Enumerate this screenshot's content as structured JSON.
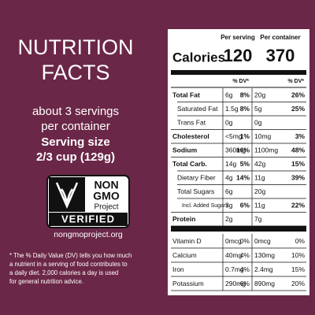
{
  "left": {
    "title_lines": [
      "NUTRITION",
      "FACTS"
    ],
    "servings_lines": [
      "about 3 servings",
      "per container"
    ],
    "serving_size_lines": [
      "Serving size",
      "2/3 cup (129g)"
    ],
    "badge": {
      "top": [
        "NON",
        "GMO"
      ],
      "project": "Project",
      "verified": "VERIFIED",
      "url": "nongmoproject.org"
    },
    "footnote_lines": [
      "* The % Daily Value (DV) tells you how much",
      "a nutrient in a serving of food contributes to",
      "a daily diet. 2,000 calories a day is used",
      "for general nutrition advice."
    ]
  },
  "panel": {
    "col_headers": [
      "Per serving",
      "Per container"
    ],
    "calories_label": "Calories",
    "calories": [
      "120",
      "370"
    ],
    "dv_headers": [
      "% DV*",
      "% DV*"
    ],
    "rows": [
      {
        "label": "Total Fat",
        "bold": true,
        "indent": 0,
        "serving": "6g",
        "serving_dv": "8%",
        "container": "20g",
        "container_dv": "26%"
      },
      {
        "label": "Saturated Fat",
        "bold": false,
        "indent": 1,
        "serving": "1.5g",
        "serving_dv": "8%",
        "container": "5g",
        "container_dv": "25%"
      },
      {
        "label": "Trans Fat",
        "bold": false,
        "indent": 1,
        "serving": "0g",
        "container": "0g"
      },
      {
        "label": "Cholesterol",
        "bold": true,
        "indent": 0,
        "serving": "<5mg",
        "serving_dv": "1%",
        "container": "10mg",
        "container_dv": "3%"
      },
      {
        "label": "Sodium",
        "bold": true,
        "indent": 0,
        "serving": "360mg",
        "serving_dv": "16%",
        "container": "1100mg",
        "container_dv": "48%"
      },
      {
        "label": "Total Carb.",
        "bold": true,
        "indent": 0,
        "serving": "14g",
        "serving_dv": "5%",
        "container": "42g",
        "container_dv": "15%"
      },
      {
        "label": "Dietary Fiber",
        "bold": false,
        "indent": 1,
        "serving": "4g",
        "serving_dv": "14%",
        "container": "11g",
        "container_dv": "39%"
      },
      {
        "label": "Total Sugars",
        "bold": false,
        "indent": 1,
        "serving": "6g",
        "container": "20g"
      },
      {
        "label": "Incl. Added Sugars",
        "bold": false,
        "indent": 2,
        "serving": "3g",
        "serving_dv": "6%",
        "container": "11g",
        "container_dv": "22%"
      },
      {
        "label": "Protein",
        "bold": true,
        "indent": 0,
        "serving": "2g",
        "container": "7g"
      },
      {
        "label": "Vitamin D",
        "bold": false,
        "indent": 0,
        "thick_rule_before": true,
        "serving": "0mcg",
        "serving_dv": "0%",
        "container": "0mcg",
        "container_dv": "0%"
      },
      {
        "label": "Calcium",
        "bold": false,
        "indent": 0,
        "serving": "40mg",
        "serving_dv": "4%",
        "container": "130mg",
        "container_dv": "10%"
      },
      {
        "label": "Iron",
        "bold": false,
        "indent": 0,
        "serving": "0.7mg",
        "serving_dv": "4%",
        "container": "2.4mg",
        "container_dv": "15%"
      },
      {
        "label": "Potassium",
        "bold": false,
        "indent": 0,
        "serving": "290mg",
        "serving_dv": "6%",
        "container": "890mg",
        "container_dv": "20%"
      }
    ]
  }
}
